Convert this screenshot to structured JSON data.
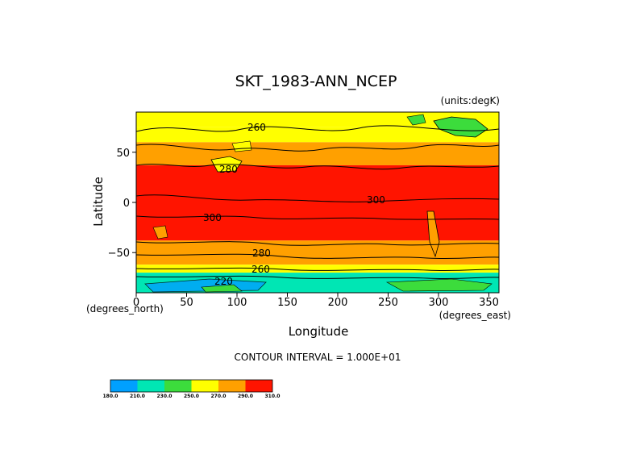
{
  "chart_data": {
    "type": "heatmap",
    "title": "SKT_1983-ANN_NCEP",
    "units_label": "(units:degK)",
    "xlabel": "Longitude",
    "ylabel": "Latitude",
    "x_unit_label": "(degrees_east)",
    "y_unit_label": "(degrees_north)",
    "xlim": [
      0,
      360
    ],
    "ylim": [
      -90,
      90
    ],
    "x_ticks": [
      "0",
      "50",
      "100",
      "150",
      "200",
      "250",
      "300",
      "350"
    ],
    "y_ticks": [
      "50",
      "0",
      "−50"
    ],
    "contour_interval_text": "CONTOUR INTERVAL = 1.000E+01",
    "contour_labels": [
      "260",
      "280",
      "300",
      "300",
      "280",
      "260",
      "220"
    ],
    "colorbar": {
      "labels": [
        "180.0",
        "210.0",
        "230.0",
        "250.0",
        "270.0",
        "290.0",
        "310.0"
      ],
      "colors": [
        "#00a0ff",
        "#00e6b4",
        "#3cdc3c",
        "#ffff00",
        "#ffa000",
        "#ff1400"
      ]
    },
    "bands": [
      {
        "lat_from": 90,
        "lat_to": 75,
        "temp_range": "250-270",
        "color": "#ffff00"
      },
      {
        "lat_from": 75,
        "lat_to": 60,
        "temp_range": "260-270",
        "color": "#ffff00"
      },
      {
        "lat_from": 60,
        "lat_to": 37,
        "temp_range": "270-290",
        "color": "#ffa000"
      },
      {
        "lat_from": 37,
        "lat_to": -38,
        "temp_range": "290-310",
        "color": "#ff1400"
      },
      {
        "lat_from": -38,
        "lat_to": -62,
        "temp_range": "270-290",
        "color": "#ffa000"
      },
      {
        "lat_from": -62,
        "lat_to": -70,
        "temp_range": "260-270",
        "color": "#ffff00"
      },
      {
        "lat_from": -70,
        "lat_to": -90,
        "temp_range": "210-250",
        "color": "#00e6b4"
      }
    ]
  }
}
